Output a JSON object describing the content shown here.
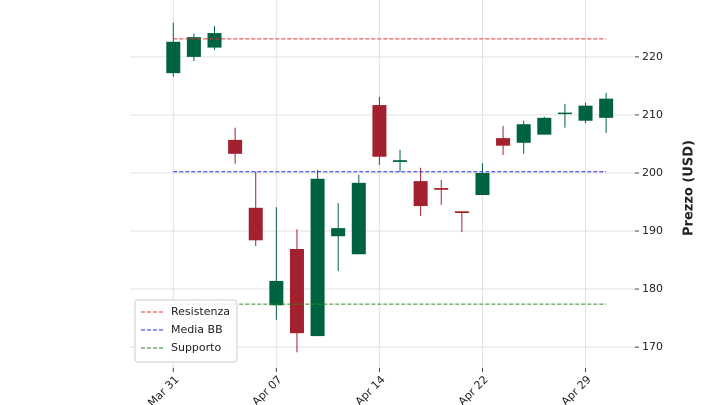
{
  "chart_data": {
    "type": "candlestick",
    "y_label": "Prezzo (USD)",
    "categories": [
      "Mar 31",
      null,
      null,
      null,
      null,
      "Apr 07",
      null,
      null,
      null,
      null,
      "Apr 14",
      null,
      null,
      null,
      null,
      "Apr 22",
      null,
      null,
      null,
      null,
      "Apr 29",
      null
    ],
    "open": [
      217.2,
      220.0,
      221.6,
      205.7,
      194.0,
      177.2,
      186.9,
      171.9,
      189.1,
      186.0,
      211.7,
      201.9,
      198.6,
      197.4,
      193.4,
      196.2,
      206.0,
      205.2,
      206.6,
      210.2,
      209.0,
      209.5
    ],
    "high": [
      225.9,
      224.0,
      225.3,
      207.8,
      200.2,
      194.1,
      190.3,
      200.5,
      194.8,
      199.7,
      213.1,
      204.0,
      200.9,
      198.8,
      193.4,
      201.7,
      208.1,
      209.0,
      209.7,
      211.9,
      212.1,
      213.8
    ],
    "low": [
      216.6,
      219.3,
      221.2,
      201.6,
      187.4,
      174.7,
      169.1,
      171.9,
      183.1,
      186.0,
      201.4,
      200.2,
      192.6,
      194.5,
      189.8,
      196.2,
      203.1,
      203.3,
      206.6,
      207.8,
      208.6,
      206.9
    ],
    "close": [
      222.6,
      223.4,
      224.1,
      203.3,
      188.4,
      181.4,
      172.4,
      199.0,
      190.5,
      198.3,
      202.8,
      202.2,
      194.3,
      197.1,
      193.1,
      200.0,
      204.7,
      208.4,
      209.5,
      210.4,
      211.6,
      212.8
    ],
    "up_color": "#006340",
    "down_color": "#a3202e",
    "lines": [
      {
        "name": "Resistenza",
        "color": "#e03030",
        "value": 223.1
      },
      {
        "name": "Media BB",
        "color": "#2a2ae8",
        "value": 200.2
      },
      {
        "name": "Supporto",
        "color": "#2a8a2a",
        "value": 177.4
      }
    ],
    "xlim": [
      -2.1,
      22.4
    ],
    "ylim": [
      166.4,
      229.8
    ],
    "yticks": [
      170,
      180,
      190,
      200,
      210,
      220
    ],
    "grid": true,
    "legend": "lower left"
  }
}
